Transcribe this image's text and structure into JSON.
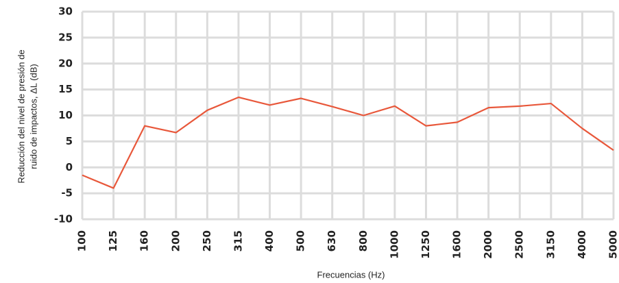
{
  "chart_data": {
    "type": "line",
    "xlabel": "Frecuencias (Hz)",
    "ylabel": [
      "Reducción del nivel de presión de",
      "ruido de impactos, ΔL (dB)"
    ],
    "categories": [
      "100",
      "125",
      "160",
      "200",
      "250",
      "315",
      "400",
      "500",
      "630",
      "800",
      "1000",
      "1250",
      "1600",
      "2000",
      "2500",
      "3150",
      "4000",
      "5000"
    ],
    "values": [
      -1.5,
      -4,
      8,
      6.7,
      11,
      13.5,
      12,
      13.3,
      11.7,
      10,
      11.8,
      8,
      8.7,
      11.5,
      11.8,
      12.3,
      7.5,
      3.3
    ],
    "color": "#e8573a",
    "ylim": [
      -10,
      30
    ],
    "yticks": [
      -10,
      -5,
      0,
      5,
      10,
      15,
      20,
      25,
      30
    ],
    "grid": true
  }
}
